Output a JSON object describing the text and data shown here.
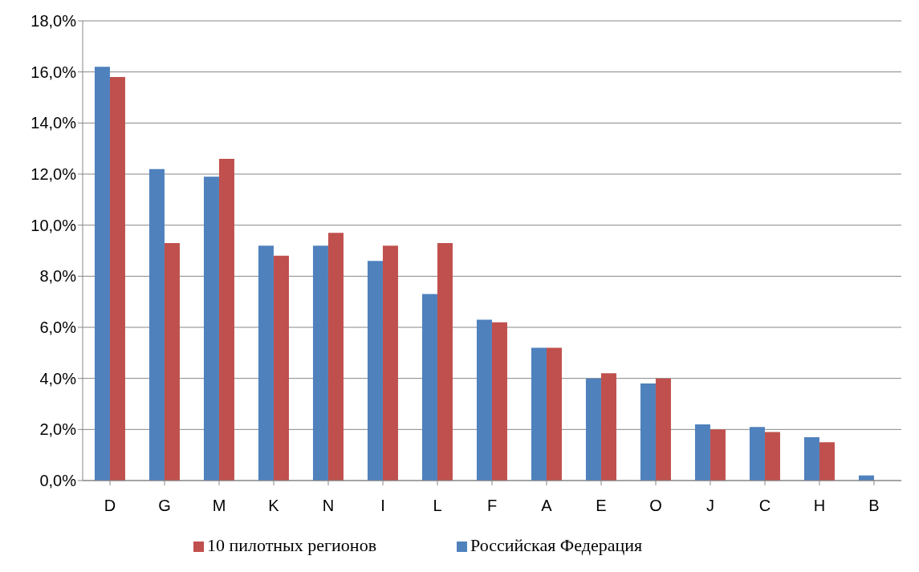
{
  "chart_data": {
    "type": "bar",
    "categories": [
      "D",
      "G",
      "M",
      "K",
      "N",
      "I",
      "L",
      "F",
      "A",
      "E",
      "O",
      "J",
      "C",
      "H",
      "B"
    ],
    "series": [
      {
        "name": "Российская Федерация",
        "color": "#4f81bd",
        "values": [
          16.2,
          12.2,
          11.9,
          9.2,
          9.2,
          8.6,
          7.3,
          6.3,
          5.2,
          4.0,
          3.8,
          2.2,
          2.1,
          1.7,
          0.2
        ]
      },
      {
        "name": "10 пилотных регионов",
        "color": "#c0504d",
        "values": [
          15.8,
          9.3,
          12.6,
          8.8,
          9.7,
          9.2,
          9.3,
          6.2,
          5.2,
          4.2,
          4.0,
          2.0,
          1.9,
          1.5,
          null
        ]
      }
    ],
    "ylim": [
      0,
      18
    ],
    "yticks": [
      {
        "value": 0,
        "label": "0,0%"
      },
      {
        "value": 2,
        "label": "2,0%"
      },
      {
        "value": 4,
        "label": "4,0%"
      },
      {
        "value": 6,
        "label": "6,0%"
      },
      {
        "value": 8,
        "label": "8,0%"
      },
      {
        "value": 10,
        "label": "10,0%"
      },
      {
        "value": 12,
        "label": "12,0%"
      },
      {
        "value": 14,
        "label": "14,0%"
      },
      {
        "value": 16,
        "label": "16,0%"
      },
      {
        "value": 18,
        "label": "18,0%"
      }
    ],
    "grid": "y",
    "legend": "bottom"
  }
}
